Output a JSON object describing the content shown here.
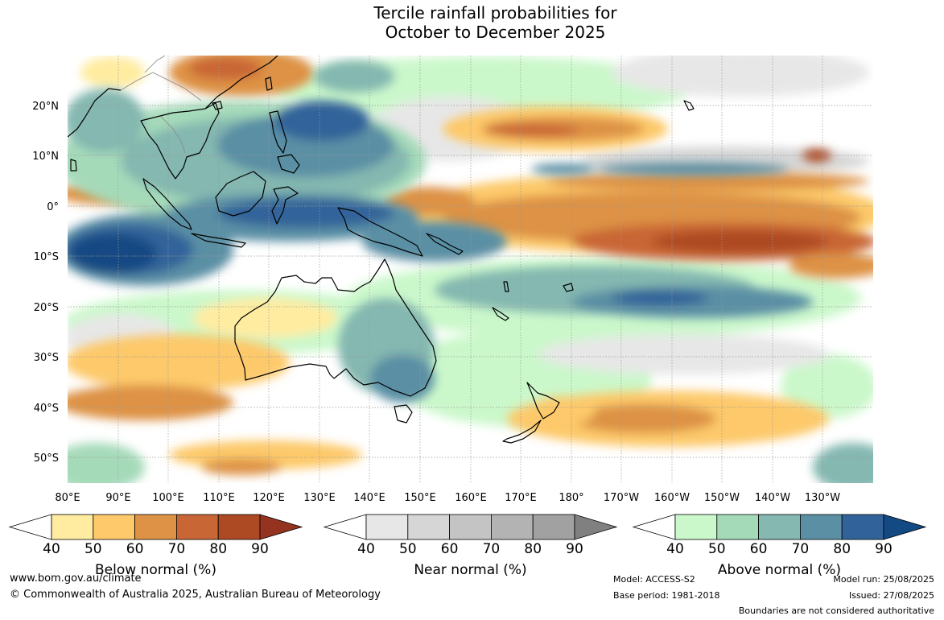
{
  "title": {
    "line1": "Tercile rainfall probabilities for",
    "line2": "October to December 2025"
  },
  "map": {
    "lat_ticks": [
      "20°N",
      "10°N",
      "0°",
      "10°S",
      "20°S",
      "30°S",
      "40°S",
      "50°S"
    ],
    "lon_ticks": [
      "80°E",
      "90°E",
      "100°E",
      "110°E",
      "120°E",
      "130°E",
      "140°E",
      "150°E",
      "160°E",
      "170°E",
      "180°",
      "170°W",
      "160°W",
      "150°W",
      "140°W",
      "130°W"
    ],
    "extent": {
      "lon_min": 80,
      "lon_max": 240,
      "lat_min": -55,
      "lat_max": 30
    }
  },
  "colorbars": [
    {
      "title": "Below normal (%)",
      "ticks": [
        "40",
        "50",
        "60",
        "70",
        "80",
        "90"
      ],
      "colors": [
        "#ffffff",
        "#ffeca0",
        "#fdc96a",
        "#dd9245",
        "#c96635",
        "#ad4a24",
        "#943420"
      ]
    },
    {
      "title": "Near normal (%)",
      "ticks": [
        "40",
        "50",
        "60",
        "70",
        "80",
        "90"
      ],
      "colors": [
        "#ffffff",
        "#e7e7e7",
        "#d6d6d6",
        "#c4c4c4",
        "#b3b3b3",
        "#a1a1a1",
        "#808080"
      ]
    },
    {
      "title": "Above normal (%)",
      "ticks": [
        "40",
        "50",
        "60",
        "70",
        "80",
        "90"
      ],
      "colors": [
        "#ffffff",
        "#cbf8cb",
        "#a5dab9",
        "#84b8b0",
        "#5a8fa4",
        "#31639a",
        "#134a83"
      ]
    }
  ],
  "footer": {
    "url": "www.bom.gov.au/climate",
    "copyright": "© Commonwealth of Australia 2025, Australian Bureau of Meteorology",
    "model": "Model: ACCESS-S2",
    "base_period": "Base period: 1981-2018",
    "model_run": "Model run: 25/08/2025",
    "issued": "Issued: 27/08/2025",
    "boundaries": "Boundaries are not considered authoritative"
  }
}
